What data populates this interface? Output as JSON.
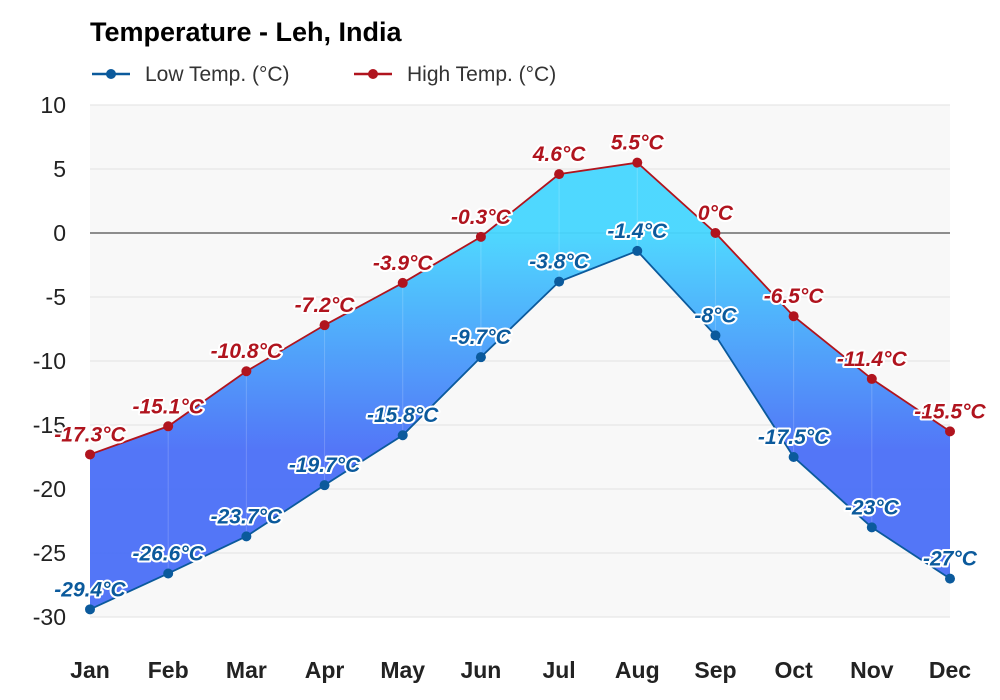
{
  "chart_data": {
    "type": "area",
    "title": "Temperature - Leh, India",
    "categories": [
      "Jan",
      "Feb",
      "Mar",
      "Apr",
      "May",
      "Jun",
      "Jul",
      "Aug",
      "Sep",
      "Oct",
      "Nov",
      "Dec"
    ],
    "series": [
      {
        "name": "Low Temp. (°C)",
        "color": "#0b5a9c",
        "values": [
          -29.4,
          -26.6,
          -23.7,
          -19.7,
          -15.8,
          -9.7,
          -3.8,
          -1.4,
          -8,
          -17.5,
          -23,
          -27
        ],
        "labels": [
          "-29.4°C",
          "-26.6°C",
          "-23.7°C",
          "-19.7°C",
          "-15.8°C",
          "-9.7°C",
          "-3.8°C",
          "-1.4°C",
          "-8°C",
          "-17.5°C",
          "-23°C",
          "-27°C"
        ]
      },
      {
        "name": "High Temp. (°C)",
        "color": "#b0141e",
        "values": [
          -17.3,
          -15.1,
          -10.8,
          -7.2,
          -3.9,
          -0.3,
          4.6,
          5.5,
          0,
          -6.5,
          -11.4,
          -15.5
        ],
        "labels": [
          "-17.3°C",
          "-15.1°C",
          "-10.8°C",
          "-7.2°C",
          "-3.9°C",
          "-0.3°C",
          "4.6°C",
          "5.5°C",
          "0°C",
          "-6.5°C",
          "-11.4°C",
          "-15.5°C"
        ]
      }
    ],
    "ylim": [
      -30,
      10
    ],
    "yticks": [
      10,
      5,
      0,
      -5,
      -10,
      -15,
      -20,
      -25,
      -30
    ],
    "ytick_labels": [
      "10",
      "5",
      "0",
      "-5",
      "-10",
      "-15",
      "-20",
      "-25",
      "-30"
    ],
    "fill_colors": {
      "cold": "#4a6ff7",
      "warm": "#46d6ff"
    },
    "grid": true,
    "legend_position": "top-left"
  }
}
